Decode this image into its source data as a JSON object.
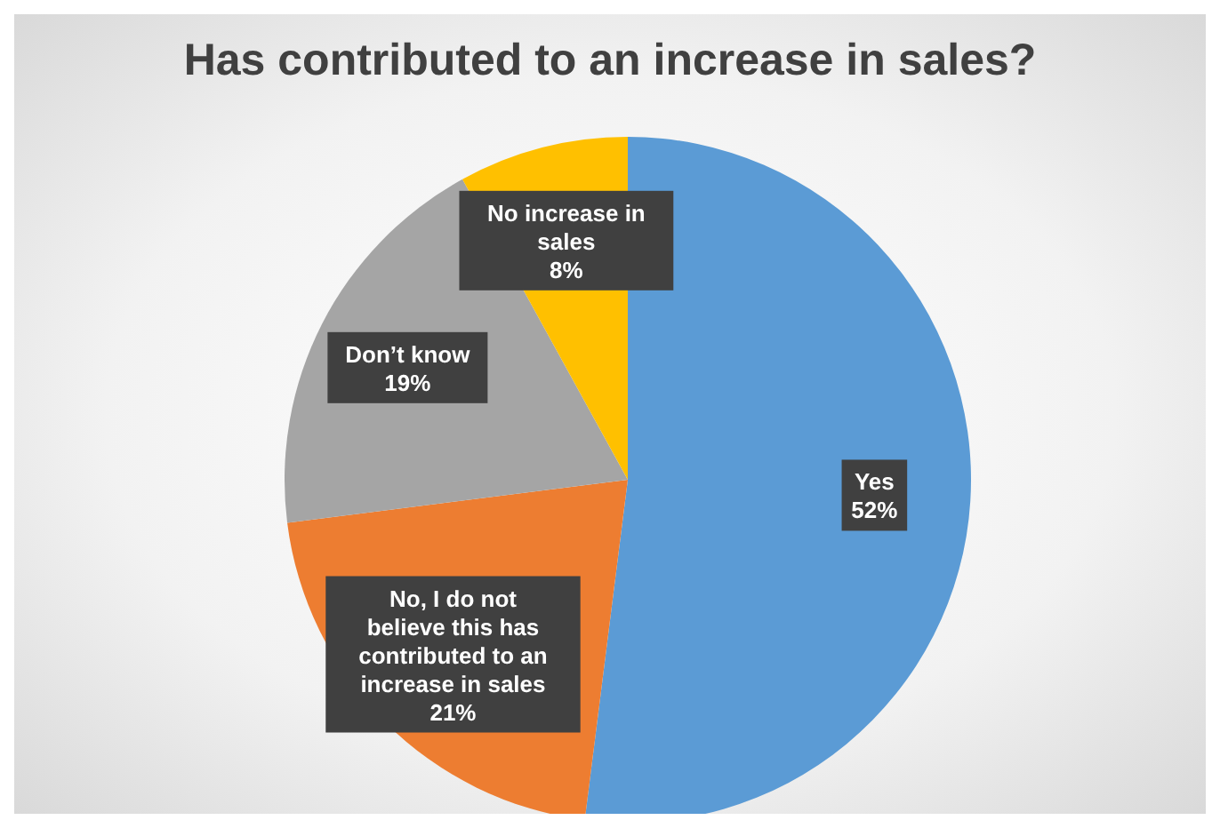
{
  "chart_data": {
    "type": "pie",
    "title": "Has contributed to an increase in sales?",
    "categories": [
      "Yes",
      "No, I do not believe this has contributed to an increase in sales",
      "Don’t know",
      "No increase in sales"
    ],
    "values": [
      52,
      21,
      19,
      8
    ],
    "colors": [
      "#5b9bd5",
      "#ed7d31",
      "#a5a5a5",
      "#ffc000"
    ],
    "value_labels": [
      "52%",
      "21%",
      "19%",
      "8%"
    ],
    "legend": false
  }
}
